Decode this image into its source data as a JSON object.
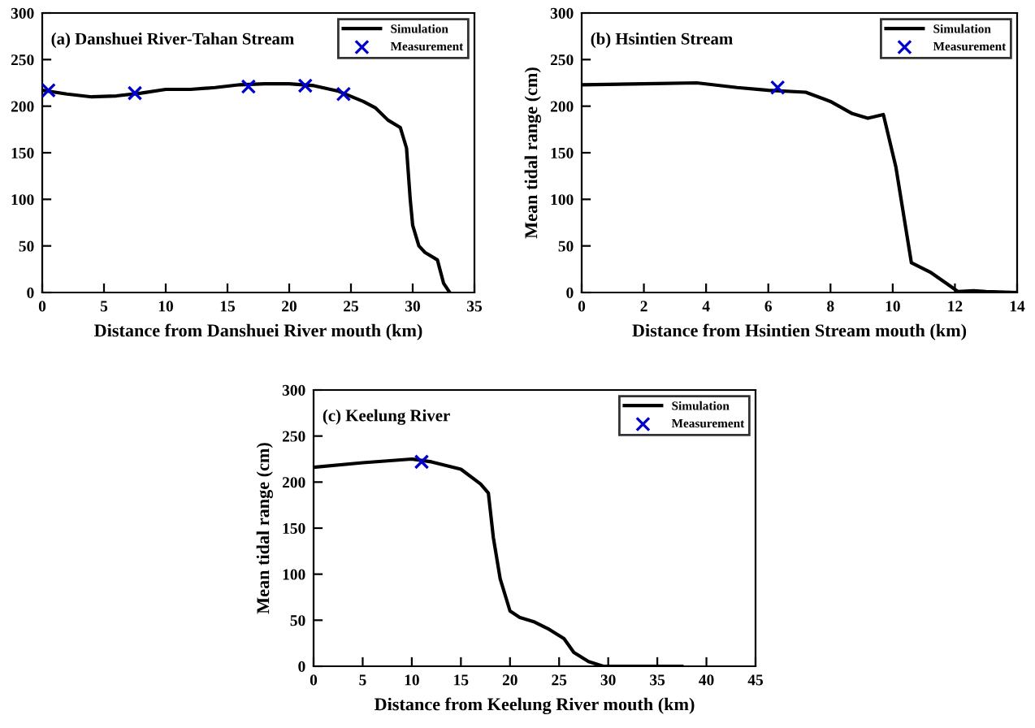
{
  "chart_data": [
    {
      "type": "line",
      "title": "(a) Danshuei River-Tahan Stream",
      "xlabel": "Distance from Danshuei River mouth (km)",
      "xlim": [
        0,
        35
      ],
      "xticks": [
        0,
        5,
        10,
        15,
        20,
        25,
        30,
        35
      ],
      "ylim": [
        0,
        300
      ],
      "yticks": [
        0,
        50,
        100,
        150,
        200,
        250,
        300
      ],
      "grid": false,
      "legend": "top right",
      "series": [
        {
          "name": "Simulation",
          "color": "#000000",
          "marker": "none",
          "x": [
            0,
            2,
            4,
            6,
            8,
            10,
            12,
            14,
            16,
            18,
            20,
            22,
            24,
            26,
            27,
            28,
            29,
            29.5,
            29.8,
            30,
            30.5,
            31,
            32,
            32.5,
            33
          ],
          "values": [
            217,
            213,
            210,
            211,
            214,
            218,
            218,
            220,
            223,
            224,
            224,
            222,
            216,
            205,
            198,
            185,
            177,
            155,
            100,
            72,
            50,
            43,
            35,
            10,
            0
          ]
        },
        {
          "name": "Measurement",
          "type": "scatter",
          "color": "#0000cc",
          "marker": "cross",
          "x": [
            0.5,
            7.5,
            16.7,
            21.3,
            24.4
          ],
          "values": [
            217,
            214,
            221,
            222,
            213
          ]
        }
      ]
    },
    {
      "type": "line",
      "title": "(b) Hsintien Stream",
      "xlabel": "Distance from Hsintien Stream mouth (km)",
      "ylabel": "Mean tidal range (cm)",
      "xlim": [
        0,
        14
      ],
      "xticks": [
        0,
        2,
        4,
        6,
        8,
        10,
        12,
        14
      ],
      "ylim": [
        0,
        300
      ],
      "yticks": [
        0,
        50,
        100,
        150,
        200,
        250,
        300
      ],
      "grid": false,
      "legend": "top right",
      "series": [
        {
          "name": "Simulation",
          "color": "#000000",
          "marker": "none",
          "x": [
            0,
            2,
            3.7,
            5,
            6,
            7.2,
            8,
            8.7,
            9.2,
            9.7,
            10.1,
            10.6,
            11.2,
            11.8,
            12.1,
            12.6,
            13,
            14
          ],
          "values": [
            223,
            224,
            225,
            220,
            217,
            215,
            205,
            192,
            187,
            191,
            135,
            32,
            22,
            8,
            1,
            2,
            1,
            0
          ]
        },
        {
          "name": "Measurement",
          "type": "scatter",
          "color": "#0000cc",
          "marker": "cross",
          "x": [
            6.3
          ],
          "values": [
            220
          ]
        }
      ]
    },
    {
      "type": "line",
      "title": "(c) Keelung River",
      "xlabel": "Distance from Keelung River mouth (km)",
      "ylabel": "Mean tidal range (cm)",
      "xlim": [
        0,
        45
      ],
      "xticks": [
        0,
        5,
        10,
        15,
        20,
        25,
        30,
        35,
        40,
        45
      ],
      "ylim": [
        0,
        300
      ],
      "yticks": [
        0,
        50,
        100,
        150,
        200,
        250,
        300
      ],
      "grid": false,
      "legend": "top right",
      "series": [
        {
          "name": "Simulation",
          "color": "#000000",
          "marker": "none",
          "x": [
            0,
            5,
            10,
            12,
            15,
            17,
            17.8,
            18.3,
            19,
            20,
            21,
            22.5,
            24,
            25.5,
            26.5,
            28,
            29.5,
            32,
            37.5
          ],
          "values": [
            216,
            221,
            225,
            222,
            214,
            198,
            188,
            140,
            95,
            60,
            53,
            48,
            40,
            30,
            15,
            5,
            0,
            0,
            0
          ]
        },
        {
          "name": "Measurement",
          "type": "scatter",
          "color": "#0000cc",
          "marker": "cross",
          "x": [
            11
          ],
          "values": [
            222
          ]
        }
      ]
    }
  ]
}
